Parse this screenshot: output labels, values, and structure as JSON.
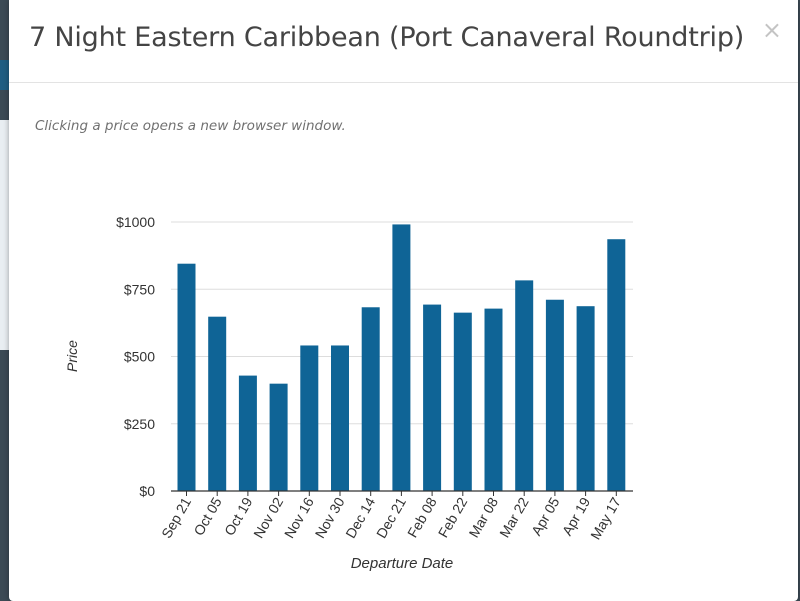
{
  "modal": {
    "title": "7 Night Eastern Caribbean (Port Canaveral Roundtrip)",
    "close_label": "×",
    "note": "Clicking a price opens a new browser window."
  },
  "colors": {
    "bar": "#0f6496",
    "axis": "#333333",
    "grid": "#dddddd"
  },
  "chart_data": {
    "type": "bar",
    "categories": [
      "Sep 21",
      "Oct 05",
      "Oct 19",
      "Nov 02",
      "Nov 16",
      "Nov 30",
      "Dec 14",
      "Dec 21",
      "Feb 08",
      "Feb 22",
      "Mar 08",
      "Mar 22",
      "Apr 05",
      "Apr 19",
      "May 17"
    ],
    "values": [
      845,
      648,
      429,
      399,
      541,
      541,
      683,
      991,
      693,
      663,
      678,
      783,
      711,
      687,
      936
    ],
    "xlabel": "Departure Date",
    "ylabel": "Price",
    "ylim": [
      0,
      1000
    ],
    "yticks": [
      0,
      250,
      500,
      750,
      1000
    ],
    "ytick_labels": [
      "$0",
      "$250",
      "$500",
      "$750",
      "$1000"
    ],
    "grid": true
  }
}
